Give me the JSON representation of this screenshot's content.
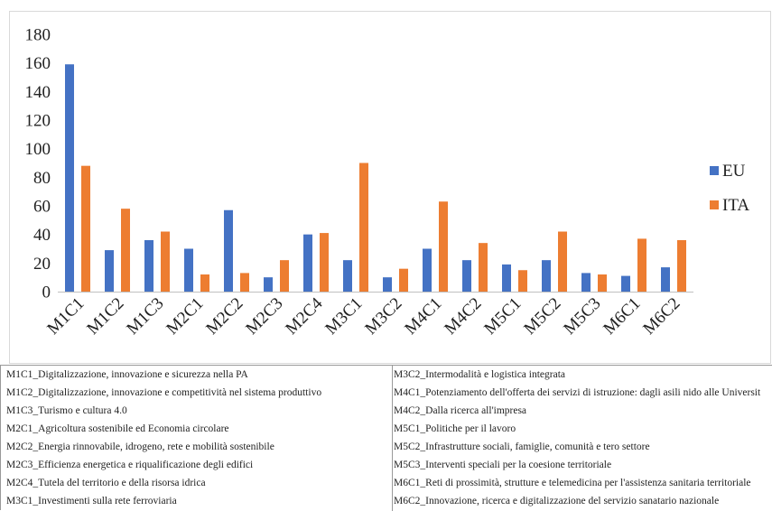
{
  "chart_data": {
    "type": "bar",
    "categories": [
      "M1C1",
      "M1C2",
      "M1C3",
      "M2C1",
      "M2C2",
      "M2C3",
      "M2C4",
      "M3C1",
      "M3C2",
      "M4C1",
      "M4C2",
      "M5C1",
      "M5C2",
      "M5C3",
      "M6C1",
      "M6C2"
    ],
    "series": [
      {
        "name": "EU",
        "color": "#4472c4",
        "values": [
          159,
          29,
          36,
          30,
          57,
          10,
          40,
          22,
          10,
          30,
          22,
          19,
          22,
          13,
          11,
          17
        ]
      },
      {
        "name": "ITA",
        "color": "#ed7d31",
        "values": [
          88,
          58,
          42,
          12,
          13,
          22,
          41,
          90,
          16,
          63,
          34,
          15,
          42,
          12,
          37,
          36
        ]
      }
    ],
    "ylim": [
      0,
      180
    ],
    "yticks": [
      0,
      20,
      40,
      60,
      80,
      100,
      120,
      140,
      160,
      180
    ],
    "grid": false,
    "legend_position": "right"
  },
  "glossary": {
    "left": [
      "M1C1_Digitalizzazione, innovazione e sicurezza nella PA",
      "M1C2_Digitalizzazione, innovazione e competitività nel sistema produttivo",
      "M1C3_Turismo e cultura 4.0",
      "M2C1_Agricoltura sostenibile ed Economia circolare",
      "M2C2_Energia rinnovabile, idrogeno, rete e mobilità sostenibile",
      "M2C3_Efficienza energetica e riqualificazione degli edifici",
      "M2C4_Tutela del territorio e della risorsa idrica",
      "M3C1_Investimenti sulla rete ferroviaria"
    ],
    "right": [
      "M3C2_Intermodalità e logistica integrata",
      "M4C1_Potenziamento dell'offerta dei servizi di istruzione: dagli asili nido alle Universit",
      "M4C2_Dalla ricerca all'impresa",
      "M5C1_Politiche per il lavoro",
      "M5C2_Infrastrutture sociali, famiglie, comunità e tero settore",
      "M5C3_Interventi speciali per la coesione territoriale",
      "M6C1_Reti di prossimità, strutture e telemedicina per l'assistenza sanitaria territoriale",
      "M6C2_Innovazione, ricerca e digitalizzazione del servizio sanatario nazionale"
    ]
  }
}
